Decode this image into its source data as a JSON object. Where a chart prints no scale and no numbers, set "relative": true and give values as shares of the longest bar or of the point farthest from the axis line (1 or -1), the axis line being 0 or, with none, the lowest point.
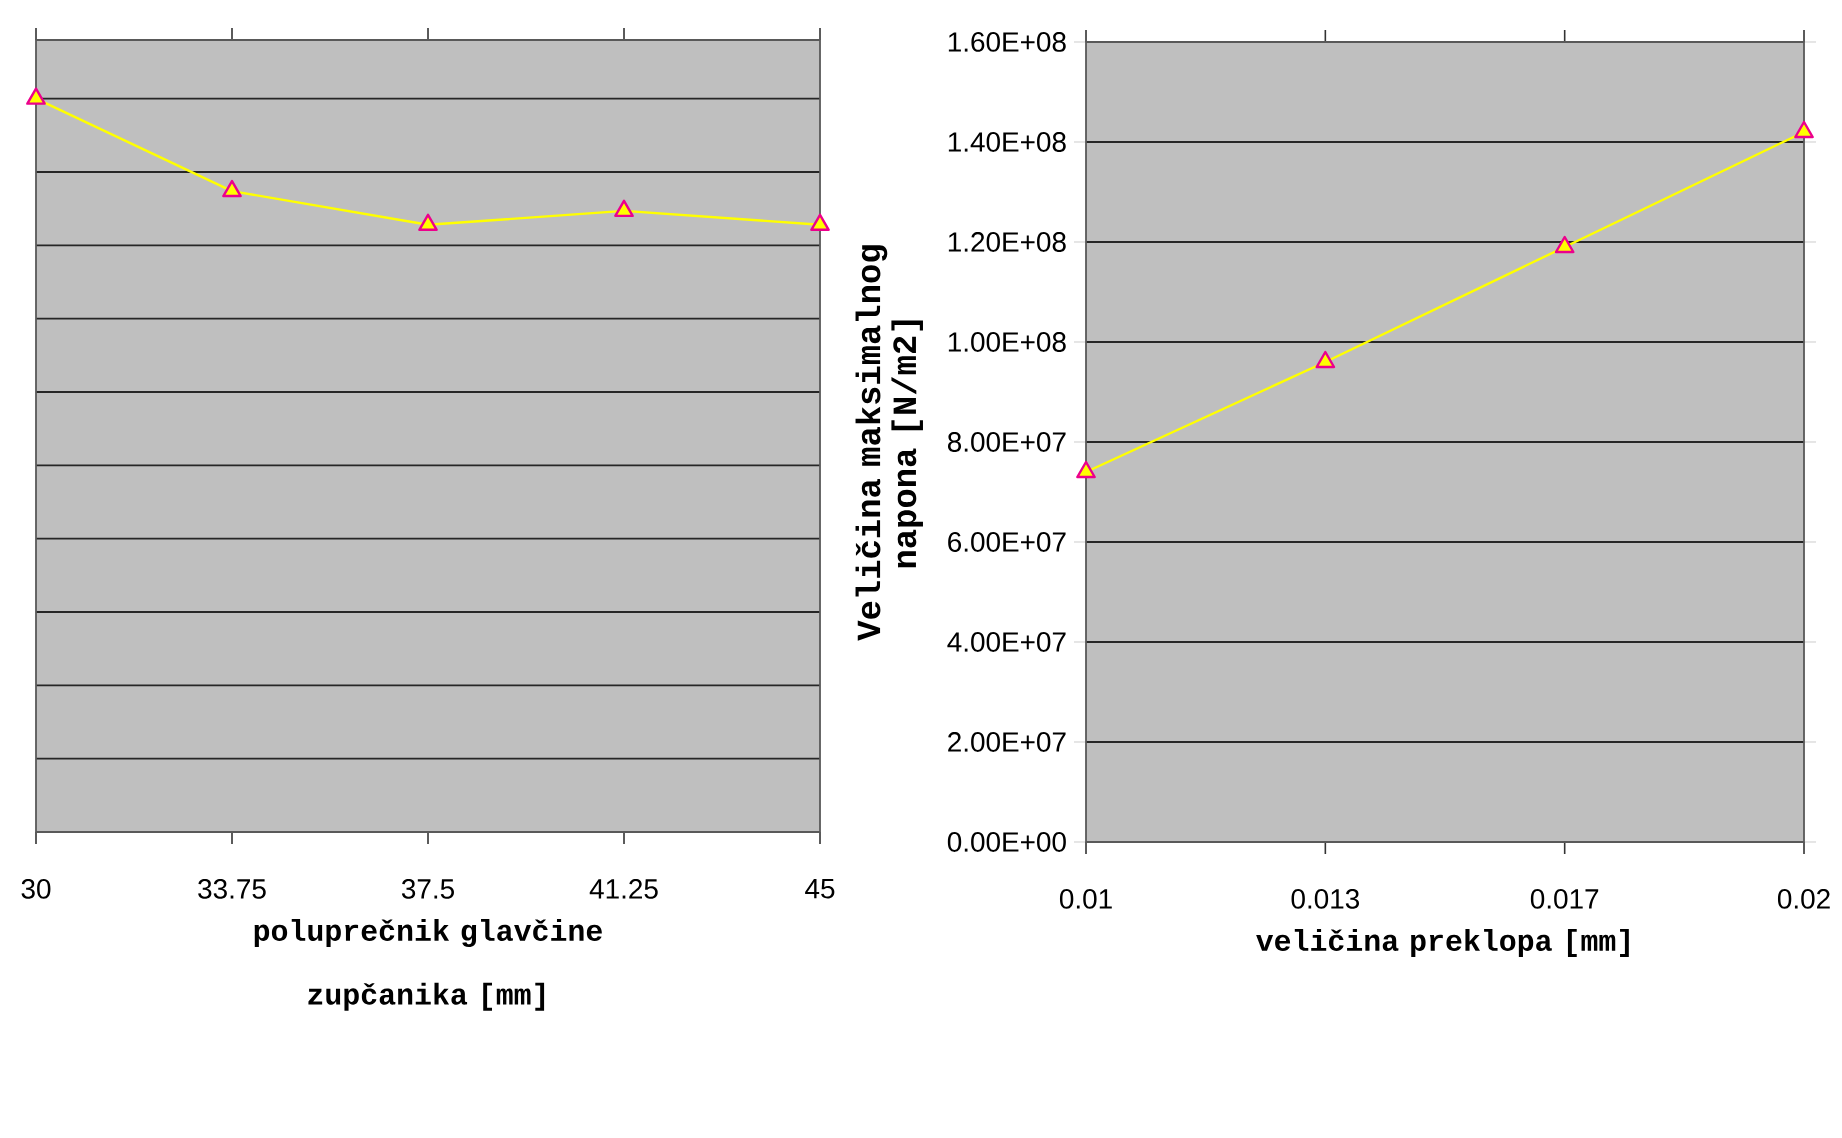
{
  "chart_data": [
    {
      "type": "line",
      "relative": true,
      "xlabel": "poluprečnik glavčine zupčanika [mm]",
      "categories": [
        "30",
        "33.75",
        "37.5",
        "41.25",
        "45"
      ],
      "series": [
        {
          "color": "#ffff00",
          "values": [
            1,
            0.874,
            0.828,
            0.847,
            0.828
          ]
        }
      ],
      "marker": "triangle",
      "grid": "y",
      "tick_labels": "x"
    },
    {
      "type": "line",
      "xlabel": "veličina preklopa [mm]",
      "ylabel": "Veličina maksimalnog napona [N/m2]",
      "categories": [
        "0.01",
        "0.013",
        "0.017",
        "0.02"
      ],
      "series": [
        {
          "color": "#ffff00",
          "values": [
            74000000,
            96000000,
            119000000,
            142000000
          ]
        }
      ],
      "ylim": [
        0,
        160000000
      ],
      "yticks": [
        {
          "value": 0,
          "label": "0.00E+00"
        },
        {
          "value": 20000000,
          "label": "2.00E+07"
        },
        {
          "value": 40000000,
          "label": "4.00E+07"
        },
        {
          "value": 60000000,
          "label": "6.00E+07"
        },
        {
          "value": 80000000,
          "label": "8.00E+07"
        },
        {
          "value": 100000000,
          "label": "1.00E+08"
        },
        {
          "value": 120000000,
          "label": "1.20E+08"
        },
        {
          "value": 140000000,
          "label": "1.40E+08"
        },
        {
          "value": 160000000,
          "label": "1.60E+08"
        }
      ],
      "marker": "triangle",
      "grid": "y"
    }
  ]
}
